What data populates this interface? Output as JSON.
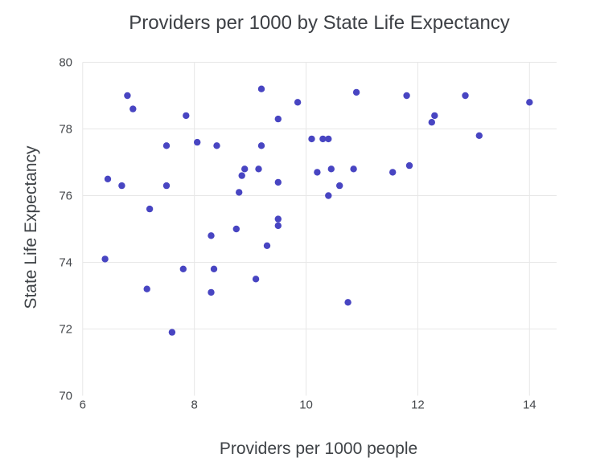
{
  "chart_data": {
    "type": "scatter",
    "title": "Providers per 1000 by State Life Expectancy",
    "xlabel": "Providers per 1000 people",
    "ylabel": "State Life Expectancy",
    "x_ticks": [
      6,
      8,
      10,
      12,
      14
    ],
    "y_ticks": [
      70,
      72,
      74,
      76,
      78,
      80
    ],
    "xlim": [
      6,
      14.5
    ],
    "ylim": [
      70,
      80
    ],
    "grid": true,
    "legend_visible": false,
    "marker_color": "#4845c2",
    "grid_color": "#e7e7e7",
    "text_color": "#3d4045",
    "background_color": "#ffffff",
    "points": [
      [
        6.8,
        79.0
      ],
      [
        6.9,
        78.6
      ],
      [
        7.85,
        78.4
      ],
      [
        9.2,
        79.2
      ],
      [
        9.85,
        78.8
      ],
      [
        9.5,
        78.3
      ],
      [
        10.9,
        79.1
      ],
      [
        11.8,
        79.0
      ],
      [
        12.85,
        79.0
      ],
      [
        14.0,
        78.8
      ],
      [
        12.3,
        78.4
      ],
      [
        12.25,
        78.2
      ],
      [
        13.1,
        77.8
      ],
      [
        7.5,
        77.5
      ],
      [
        8.05,
        77.6
      ],
      [
        8.4,
        77.5
      ],
      [
        9.2,
        77.5
      ],
      [
        10.1,
        77.7
      ],
      [
        10.3,
        77.7
      ],
      [
        10.4,
        77.7
      ],
      [
        6.45,
        76.5
      ],
      [
        6.7,
        76.3
      ],
      [
        7.5,
        76.3
      ],
      [
        7.2,
        75.6
      ],
      [
        8.9,
        76.8
      ],
      [
        9.15,
        76.8
      ],
      [
        8.85,
        76.6
      ],
      [
        8.8,
        76.1
      ],
      [
        9.5,
        76.4
      ],
      [
        10.2,
        76.7
      ],
      [
        10.45,
        76.8
      ],
      [
        10.85,
        76.8
      ],
      [
        11.55,
        76.7
      ],
      [
        11.85,
        76.9
      ],
      [
        10.6,
        76.3
      ],
      [
        10.4,
        76.0
      ],
      [
        6.4,
        74.1
      ],
      [
        9.5,
        75.3
      ],
      [
        9.5,
        75.1
      ],
      [
        8.75,
        75.0
      ],
      [
        8.3,
        74.8
      ],
      [
        9.3,
        74.5
      ],
      [
        7.8,
        73.8
      ],
      [
        8.35,
        73.8
      ],
      [
        9.1,
        73.5
      ],
      [
        7.15,
        73.2
      ],
      [
        8.3,
        73.1
      ],
      [
        7.6,
        71.9
      ],
      [
        10.75,
        72.8
      ]
    ]
  }
}
